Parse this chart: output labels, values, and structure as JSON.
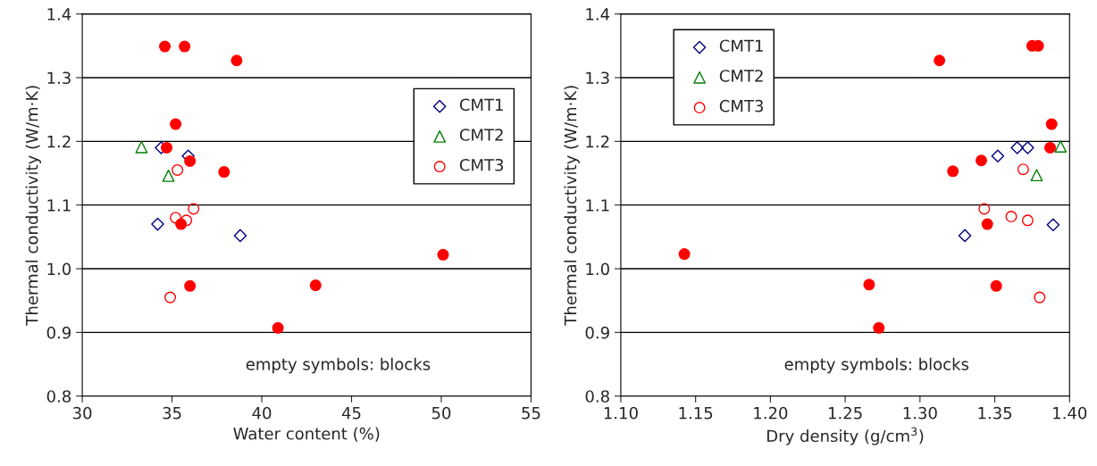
{
  "chart_data": [
    {
      "type": "scatter",
      "xlabel": "Water content (%)",
      "ylabel": "Thermal conductivity (W/m·K)",
      "xlim": [
        30,
        55
      ],
      "xticks": [
        30,
        35,
        40,
        45,
        50,
        55
      ],
      "ylim": [
        0.8,
        1.4
      ],
      "yticks": [
        {
          "value": 0.8,
          "label": "0.8"
        },
        {
          "value": 0.9,
          "label": "0.9"
        },
        {
          "value": 1.0,
          "label": "1.0"
        },
        {
          "value": 1.1,
          "label": "1.1"
        },
        {
          "value": 1.2,
          "label": "1.2"
        },
        {
          "value": 1.3,
          "label": "1.3"
        },
        {
          "value": 1.4,
          "label": "1.4"
        }
      ],
      "grid": "y",
      "legend": "right",
      "annotations": [
        "empty symbols: blocks"
      ],
      "series": [
        {
          "name": "CMT1",
          "color": "#000080",
          "marker": "diamond",
          "x": [
            34.4,
            35.9,
            34.2,
            38.8
          ],
          "values": [
            1.19,
            1.177,
            1.07,
            1.052
          ]
        },
        {
          "name": "CMT2",
          "color": "#008000",
          "marker": "triangle",
          "x": [
            33.3,
            34.8
          ],
          "values": [
            1.191,
            1.146
          ]
        },
        {
          "name": "CMT3",
          "color": "#ff0000",
          "marker": "circle",
          "x": [
            35.3,
            35.2,
            35.8,
            36.2,
            34.9
          ],
          "values": [
            1.155,
            1.08,
            1.076,
            1.094,
            0.955
          ]
        },
        {
          "color": "#ff0000",
          "marker": "circle",
          "x": [
            34.6,
            35.7,
            38.6,
            35.2,
            34.7,
            36.0,
            37.9,
            35.5,
            50.1,
            36.0,
            43.0,
            40.9
          ],
          "values": [
            1.349,
            1.349,
            1.327,
            1.227,
            1.19,
            1.169,
            1.152,
            1.07,
            1.022,
            0.973,
            0.974,
            0.907
          ]
        }
      ]
    },
    {
      "type": "scatter",
      "xlabel": "Dry density (g/cm$^{3}$)",
      "ylabel": "Thermal conductivity (W/m·K)",
      "xlim": [
        1.1,
        1.4
      ],
      "xticks": [
        {
          "value": 1.1,
          "label": "1.10"
        },
        {
          "value": 1.15,
          "label": "1.15"
        },
        {
          "value": 1.2,
          "label": "1.20"
        },
        {
          "value": 1.25,
          "label": "1.25"
        },
        {
          "value": 1.3,
          "label": "1.30"
        },
        {
          "value": 1.35,
          "label": "1.35"
        },
        {
          "value": 1.4,
          "label": "1.40"
        }
      ],
      "ylim": [
        0.8,
        1.4
      ],
      "yticks": [
        {
          "value": 0.8,
          "label": "0.8"
        },
        {
          "value": 0.9,
          "label": "0.9"
        },
        {
          "value": 1.0,
          "label": "1.0"
        },
        {
          "value": 1.1,
          "label": "1.1"
        },
        {
          "value": 1.2,
          "label": "1.2"
        },
        {
          "value": 1.3,
          "label": "1.3"
        },
        {
          "value": 1.4,
          "label": "1.4"
        }
      ],
      "grid": "y",
      "legend": "top left",
      "annotations": [
        "empty symbols: blocks"
      ],
      "series": [
        {
          "name": "CMT1",
          "color": "#000080",
          "marker": "diamond",
          "x": [
            1.33,
            1.352,
            1.365,
            1.372,
            1.389
          ],
          "values": [
            1.052,
            1.177,
            1.19,
            1.19,
            1.069
          ]
        },
        {
          "name": "CMT2",
          "color": "#008000",
          "marker": "triangle",
          "x": [
            1.394,
            1.378
          ],
          "values": [
            1.192,
            1.147
          ]
        },
        {
          "name": "CMT3",
          "color": "#ff0000",
          "marker": "circle",
          "x": [
            1.369,
            1.343,
            1.361,
            1.372,
            1.38
          ],
          "values": [
            1.156,
            1.094,
            1.082,
            1.076,
            0.955
          ]
        },
        {
          "color": "#ff0000",
          "marker": "circle",
          "x": [
            1.313,
            1.375,
            1.379,
            1.388,
            1.387,
            1.341,
            1.322,
            1.345,
            1.1425,
            1.266,
            1.351,
            1.2725
          ],
          "values": [
            1.327,
            1.35,
            1.35,
            1.227,
            1.19,
            1.17,
            1.153,
            1.07,
            1.023,
            0.975,
            0.973,
            0.907
          ]
        }
      ]
    }
  ]
}
